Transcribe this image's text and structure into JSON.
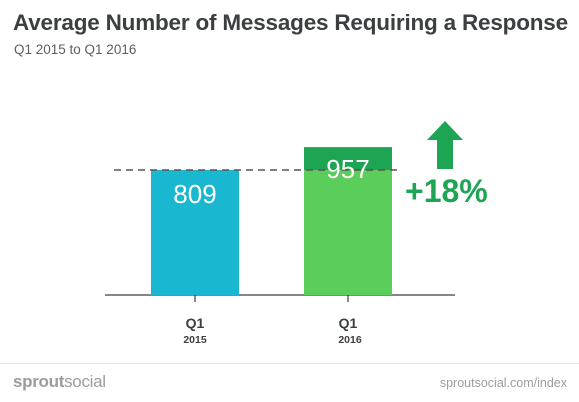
{
  "header": {
    "title": "Average Number of Messages Requiring a Response",
    "subtitle": "Q1 2015 to Q1 2016"
  },
  "chart_data": {
    "type": "bar",
    "categories": [
      {
        "quarter": "Q1",
        "year": "2015"
      },
      {
        "quarter": "Q1",
        "year": "2016"
      }
    ],
    "values": [
      809,
      957
    ],
    "value_labels": [
      "809",
      "957"
    ],
    "reference_value": 809,
    "change_label": "+18%",
    "grid": false,
    "colors": {
      "bar_2015": "#1ab7d1",
      "bar_2016_base": "#5acd5a",
      "bar_2016_increase": "#1ea553",
      "change": "#1ea553",
      "axis": "#3b3f40",
      "reference_line": "#555555"
    }
  },
  "footer": {
    "brand_bold": "sprout",
    "brand_light": "social",
    "url": "sproutsocial.com/index"
  },
  "icons": {
    "increase": "arrow-up-icon"
  }
}
